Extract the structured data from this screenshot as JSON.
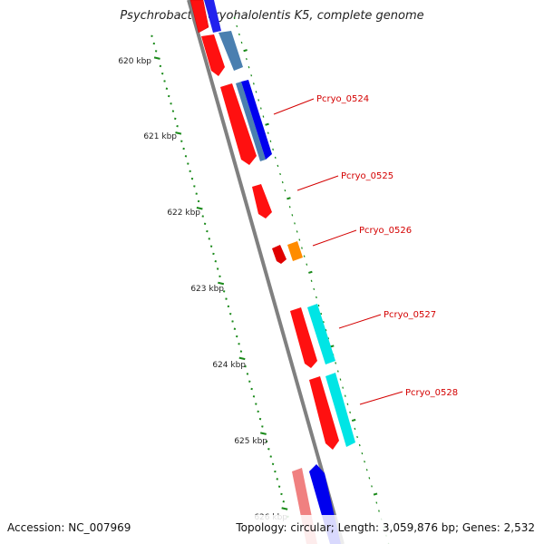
{
  "title": "Psychrobacter cryohalolentis K5, complete genome",
  "accession": "Accession: NC_007969",
  "summary": "Topology: circular; Length: 3,059,876 bp; Genes: 2,532",
  "ruler": [
    {
      "label": "620 kbp"
    },
    {
      "label": "621 kbp"
    },
    {
      "label": "622 kbp"
    },
    {
      "label": "623 kbp"
    },
    {
      "label": "624 kbp"
    },
    {
      "label": "625 kbp"
    },
    {
      "label": "626 kbp"
    }
  ],
  "gene_labels": [
    {
      "label": "Pcryo_0524"
    },
    {
      "label": "Pcryo_0525"
    },
    {
      "label": "Pcryo_0526"
    },
    {
      "label": "Pcryo_0527"
    },
    {
      "label": "Pcryo_0528"
    }
  ],
  "colors": {
    "backbone": "#8a8a8a",
    "gene_cds": "#ff0000",
    "gene_blue": "#0000ee",
    "gene_steel": "#4a7fb0",
    "gene_orange": "#ff8c00",
    "gene_cyan": "#00e5e5",
    "gene_pink": "#f08080",
    "tick_green": "#1a8a1a",
    "label_red": "#d40000"
  }
}
